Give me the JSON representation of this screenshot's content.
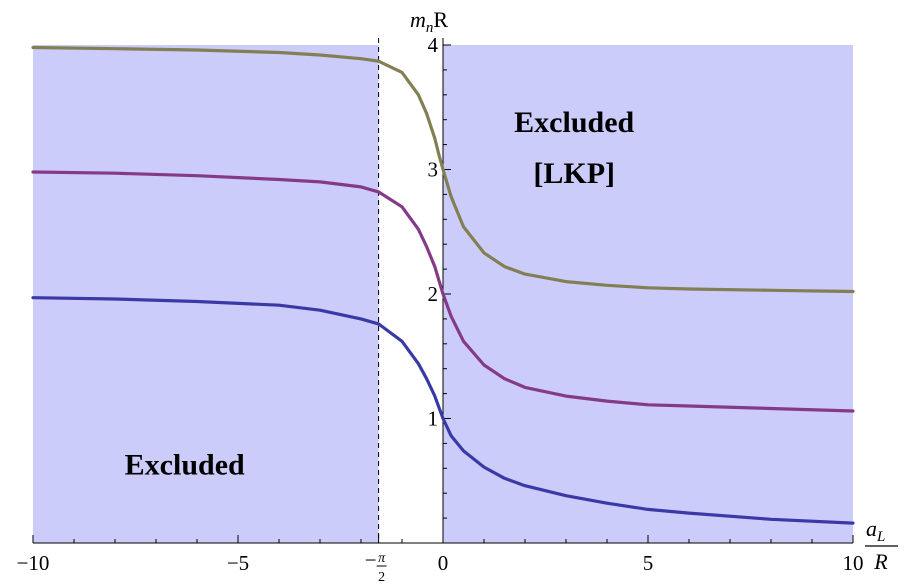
{
  "chart_data": {
    "type": "line",
    "title": "",
    "xlabel": {
      "num": "a",
      "num_sub": "L",
      "den": "R"
    },
    "ylabel": {
      "main": "m",
      "sub": "n",
      "suffix": "R"
    },
    "xlim": [
      -10,
      10
    ],
    "ylim": [
      0,
      4
    ],
    "x_ticks": [
      {
        "value": -10,
        "label": "−10"
      },
      {
        "value": -5,
        "label": "−5"
      },
      {
        "value": 0,
        "label": "0"
      },
      {
        "value": 5,
        "label": "5"
      },
      {
        "value": 10,
        "label": "10"
      }
    ],
    "special_tick": {
      "value": -1.5708,
      "prefix": "−",
      "num": "π",
      "den": "2"
    },
    "y_ticks": [
      {
        "value": 1,
        "label": "1"
      },
      {
        "value": 2,
        "label": "2"
      },
      {
        "value": 3,
        "label": "3"
      },
      {
        "value": 4,
        "label": "4"
      }
    ],
    "dashed_line_x": -1.5708,
    "excluded_regions": [
      {
        "x_range": [
          -10,
          -1.5708
        ],
        "y_range": [
          0,
          4
        ],
        "lines": [
          "Excluded"
        ],
        "label_at": {
          "x": -6.3,
          "y": 0.55
        }
      },
      {
        "x_range": [
          0,
          10
        ],
        "y_range": [
          0,
          4
        ],
        "lines": [
          "Excluded",
          "[LKP]"
        ],
        "label_at": {
          "x": 3.2,
          "y": 3.3
        }
      }
    ],
    "series": [
      {
        "color": "#3a3aa6",
        "x": [
          -10,
          -8,
          -6,
          -4,
          -3,
          -2,
          -1.5708,
          -1,
          -0.6,
          -0.4,
          -0.2,
          -0.1,
          0,
          0.2,
          0.5,
          1,
          1.5,
          2,
          3,
          4,
          5,
          6,
          8,
          10
        ],
        "y": [
          1.97,
          1.96,
          1.94,
          1.91,
          1.87,
          1.8,
          1.76,
          1.62,
          1.44,
          1.32,
          1.18,
          1.09,
          1.0,
          0.86,
          0.74,
          0.61,
          0.52,
          0.46,
          0.38,
          0.32,
          0.27,
          0.24,
          0.19,
          0.16
        ]
      },
      {
        "color": "#853a88",
        "x": [
          -10,
          -8,
          -6,
          -4,
          -3,
          -2,
          -1.5708,
          -1,
          -0.6,
          -0.4,
          -0.2,
          -0.1,
          0,
          0.2,
          0.5,
          1,
          1.5,
          2,
          3,
          4,
          5,
          6,
          8,
          10
        ],
        "y": [
          2.98,
          2.97,
          2.95,
          2.92,
          2.9,
          2.86,
          2.82,
          2.7,
          2.52,
          2.38,
          2.22,
          2.11,
          2.0,
          1.82,
          1.62,
          1.43,
          1.32,
          1.25,
          1.18,
          1.14,
          1.11,
          1.1,
          1.08,
          1.06
        ]
      },
      {
        "color": "#827f55",
        "x": [
          -10,
          -8,
          -6,
          -4,
          -3,
          -2,
          -1.5708,
          -1,
          -0.6,
          -0.4,
          -0.2,
          -0.1,
          0,
          0.2,
          0.5,
          1,
          1.5,
          2,
          3,
          4,
          5,
          6,
          8,
          10
        ],
        "y": [
          3.98,
          3.97,
          3.96,
          3.94,
          3.92,
          3.89,
          3.87,
          3.78,
          3.6,
          3.45,
          3.25,
          3.12,
          3.0,
          2.78,
          2.54,
          2.33,
          2.22,
          2.16,
          2.1,
          2.07,
          2.05,
          2.04,
          2.03,
          2.02
        ]
      }
    ]
  }
}
